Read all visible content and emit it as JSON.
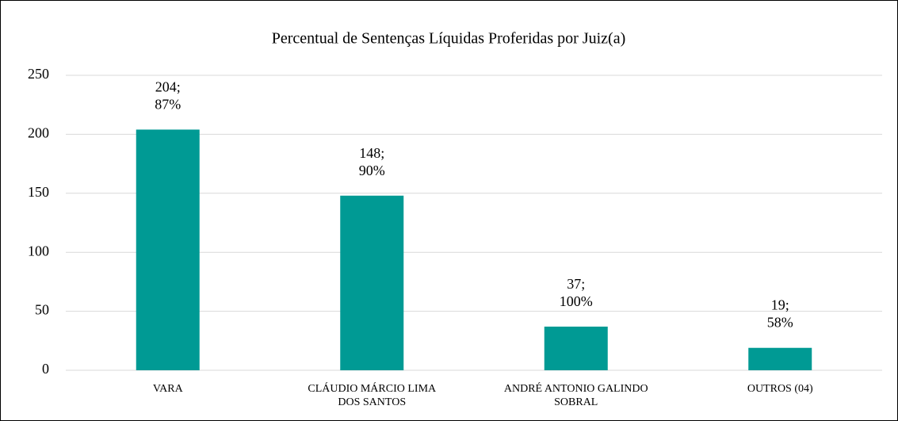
{
  "chart_data": {
    "type": "bar",
    "title": "Percentual de Sentenças Líquidas Proferidas por Juiz(a)",
    "categories": [
      "VARA",
      "CLÁUDIO MÁRCIO LIMA\nDOS SANTOS",
      "ANDRÉ ANTONIO GALINDO\nSOBRAL",
      "OUTROS (04)"
    ],
    "values": [
      204,
      148,
      37,
      19
    ],
    "value_labels": [
      "204;\n87%",
      "148;\n90%",
      "37;\n100%",
      "19;\n58%"
    ],
    "color": "#009a94",
    "ylim": [
      0,
      250
    ],
    "yticks": [
      0,
      50,
      100,
      150,
      200,
      250
    ],
    "grid": true
  }
}
